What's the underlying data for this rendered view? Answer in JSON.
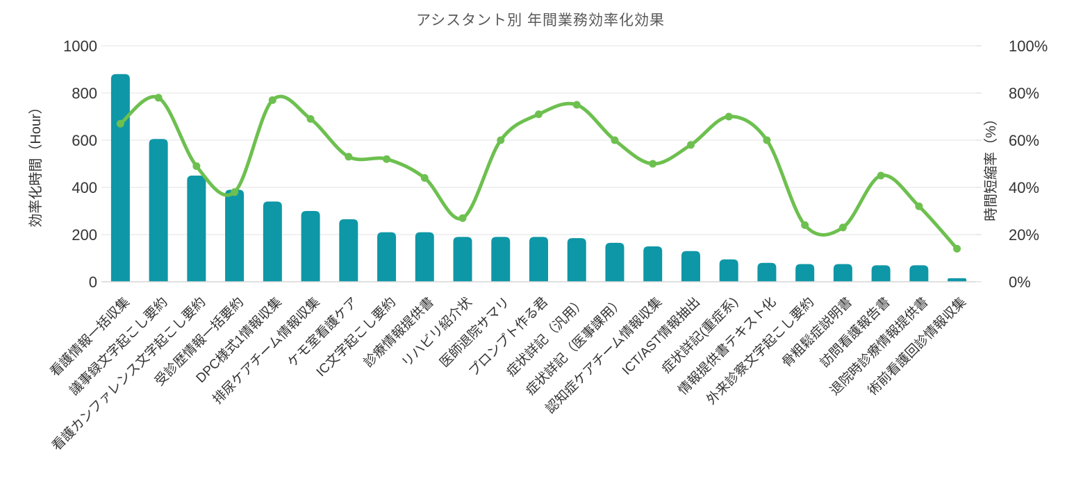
{
  "title": "アシスタント別 年間業務効率化効果",
  "y_axis": {
    "label": "効率化時間（Hour）",
    "ticks": [
      "0",
      "200",
      "400",
      "600",
      "800",
      "1000"
    ],
    "min": 0,
    "max": 1000
  },
  "y2_axis": {
    "label": "時間短縮率（%）",
    "ticks": [
      "0%",
      "20%",
      "40%",
      "60%",
      "80%",
      "100%"
    ],
    "min": 0,
    "max": 100
  },
  "chart_data": {
    "type": "combo",
    "title": "アシスタント別 年間業務効率化効果",
    "xlabel": "",
    "ylabel_left": "効率化時間（Hour）",
    "ylabel_right": "時間短縮率（%）",
    "ylim_left": [
      0,
      1000
    ],
    "ylim_right": [
      0,
      100
    ],
    "grid": true,
    "legend_position": "none",
    "categories": [
      "看護情報一括収集",
      "議事録文字起こし要約",
      "看護カンファレンス文字起こし要約",
      "受診歴情報一括要約",
      "DPC様式1情報収集",
      "排尿ケアチーム情報収集",
      "ケモ室看護ケア",
      "IC文字起こし要約",
      "診療情報提供書",
      "リハビリ紹介状",
      "医師退院サマリ",
      "プロンプト作る君",
      "症状詳記（汎用）",
      "症状詳記（医事課用）",
      "認知症ケアチーム情報収集",
      "ICT/AST情報抽出",
      "症状詳記(重症系)",
      "情報提供書テキスト化",
      "外来診察文字起こし要約",
      "骨粗鬆症説明書",
      "訪問看護報告書",
      "退院時診療情報提供書",
      "術前看護回診情報収集"
    ],
    "series": [
      {
        "name": "効率化時間（Hour）",
        "type": "bar",
        "axis": "left",
        "unit": "Hour",
        "values": [
          880,
          605,
          450,
          390,
          340,
          300,
          265,
          210,
          210,
          190,
          190,
          190,
          185,
          165,
          150,
          130,
          95,
          80,
          75,
          75,
          70,
          70,
          15
        ]
      },
      {
        "name": "時間短縮率（%）",
        "type": "line",
        "axis": "right",
        "unit": "%",
        "values": [
          67,
          78,
          49,
          38,
          77,
          69,
          53,
          52,
          44,
          27,
          60,
          71,
          75,
          60,
          50,
          58,
          70,
          60,
          24,
          23,
          45,
          32,
          14
        ]
      }
    ]
  },
  "colors": {
    "bar": "#0E97A6",
    "line": "#6DC04F",
    "grid": "#E3E3E3",
    "axis_line": "#D5D5D5",
    "title_text": "#595959",
    "tick_text": "#333333"
  }
}
